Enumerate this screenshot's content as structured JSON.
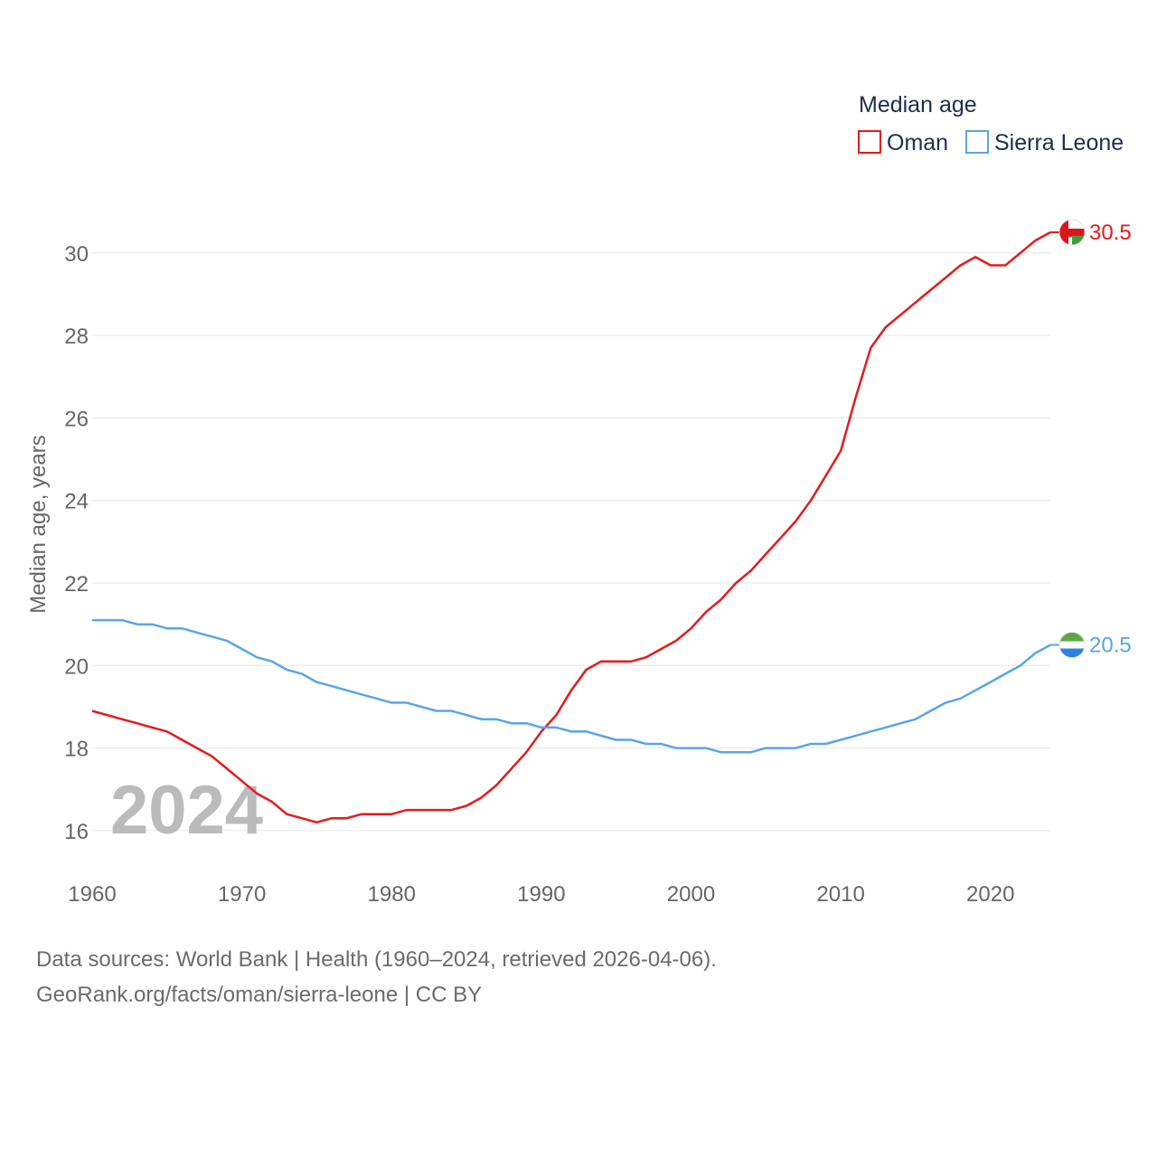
{
  "chart_data": {
    "type": "line",
    "title": "Median age",
    "ylabel": "Median age, years",
    "xlabel": "",
    "year_watermark": "2024",
    "xlim": [
      1960,
      2024
    ],
    "ylim": [
      15.1,
      31.2
    ],
    "x_ticks": [
      1960,
      1970,
      1980,
      1990,
      2000,
      2010,
      2020
    ],
    "y_ticks": [
      16,
      18,
      20,
      22,
      24,
      26,
      28,
      30
    ],
    "grid": true,
    "legend": "top-right",
    "x": [
      1960,
      1961,
      1962,
      1963,
      1964,
      1965,
      1966,
      1967,
      1968,
      1969,
      1970,
      1971,
      1972,
      1973,
      1974,
      1975,
      1976,
      1977,
      1978,
      1979,
      1980,
      1981,
      1982,
      1983,
      1984,
      1985,
      1986,
      1987,
      1988,
      1989,
      1990,
      1991,
      1992,
      1993,
      1994,
      1995,
      1996,
      1997,
      1998,
      1999,
      2000,
      2001,
      2002,
      2003,
      2004,
      2005,
      2006,
      2007,
      2008,
      2009,
      2010,
      2011,
      2012,
      2013,
      2014,
      2015,
      2016,
      2017,
      2018,
      2019,
      2020,
      2021,
      2022,
      2023,
      2024
    ],
    "series": [
      {
        "name": "Oman",
        "color": "#e41a1c",
        "end_label": "30.5",
        "flag": "oman-flag",
        "values": [
          18.9,
          18.8,
          18.7,
          18.6,
          18.5,
          18.4,
          18.2,
          18.0,
          17.8,
          17.5,
          17.2,
          16.9,
          16.7,
          16.4,
          16.3,
          16.2,
          16.3,
          16.3,
          16.4,
          16.4,
          16.4,
          16.5,
          16.5,
          16.5,
          16.5,
          16.6,
          16.8,
          17.1,
          17.5,
          17.9,
          18.4,
          18.8,
          19.4,
          19.9,
          20.1,
          20.1,
          20.1,
          20.2,
          20.4,
          20.6,
          20.9,
          21.3,
          21.6,
          22.0,
          22.3,
          22.7,
          23.1,
          23.5,
          24.0,
          24.6,
          25.2,
          26.5,
          27.7,
          28.2,
          28.5,
          28.8,
          29.1,
          29.4,
          29.7,
          29.9,
          29.7,
          29.7,
          30.0,
          30.3,
          30.5
        ]
      },
      {
        "name": "Sierra Leone",
        "color": "#5aa5e6",
        "end_label": "20.5",
        "flag": "sierra-leone-flag",
        "values": [
          21.1,
          21.1,
          21.1,
          21.0,
          21.0,
          20.9,
          20.9,
          20.8,
          20.7,
          20.6,
          20.4,
          20.2,
          20.1,
          19.9,
          19.8,
          19.6,
          19.5,
          19.4,
          19.3,
          19.2,
          19.1,
          19.1,
          19.0,
          18.9,
          18.9,
          18.8,
          18.7,
          18.7,
          18.6,
          18.6,
          18.5,
          18.5,
          18.4,
          18.4,
          18.3,
          18.2,
          18.2,
          18.1,
          18.1,
          18.0,
          18.0,
          18.0,
          17.9,
          17.9,
          17.9,
          18.0,
          18.0,
          18.0,
          18.1,
          18.1,
          18.2,
          18.3,
          18.4,
          18.5,
          18.6,
          18.7,
          18.9,
          19.1,
          19.2,
          19.4,
          19.6,
          19.8,
          20.0,
          20.3,
          20.5
        ]
      }
    ]
  },
  "footer": {
    "line1": "Data sources: World Bank | Health (1960–2024, retrieved 2026-04-06).",
    "line2": "GeoRank.org/facts/oman/sierra-leone | CC BY"
  }
}
